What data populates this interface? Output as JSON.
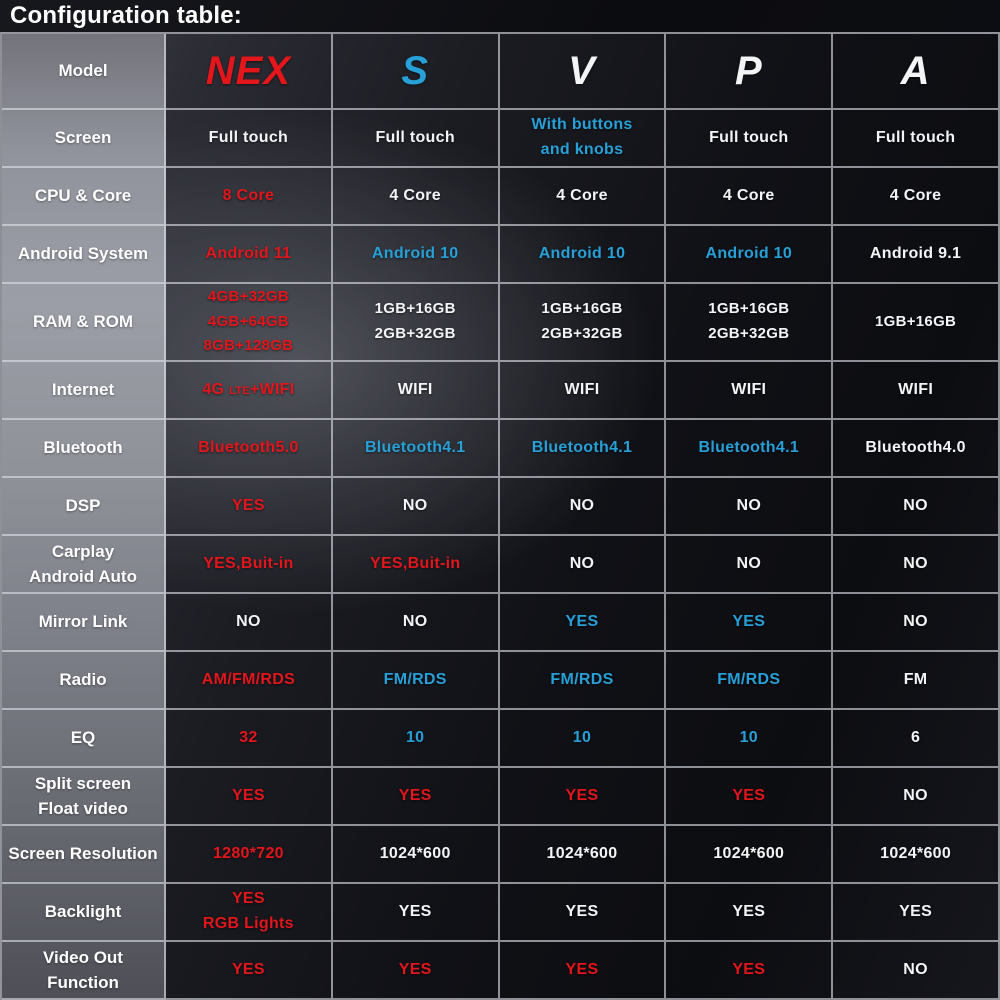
{
  "colors": {
    "red": "#e2161b",
    "blue": "#27a0d8",
    "white": "#f3f4f6",
    "line": "rgba(222,225,232,0.62)"
  },
  "chart_data": {
    "type": "table",
    "title": "Configuration table:",
    "corner_label": "Model",
    "columns": [
      {
        "name": "NEX",
        "color": "red"
      },
      {
        "name": "S",
        "color": "blue"
      },
      {
        "name": "V",
        "color": "white"
      },
      {
        "name": "P",
        "color": "white"
      },
      {
        "name": "A",
        "color": "white"
      }
    ],
    "rows": [
      {
        "label": [
          "Screen"
        ],
        "cells": [
          {
            "lines": [
              "Full touch"
            ],
            "color": "white"
          },
          {
            "lines": [
              "Full touch"
            ],
            "color": "white"
          },
          {
            "lines": [
              "With buttons",
              "and knobs"
            ],
            "color": "blue"
          },
          {
            "lines": [
              "Full touch"
            ],
            "color": "white"
          },
          {
            "lines": [
              "Full touch"
            ],
            "color": "white"
          }
        ]
      },
      {
        "label": [
          "CPU & Core"
        ],
        "cells": [
          {
            "lines": [
              "8 Core"
            ],
            "color": "red"
          },
          {
            "lines": [
              "4 Core"
            ],
            "color": "white"
          },
          {
            "lines": [
              "4 Core"
            ],
            "color": "white"
          },
          {
            "lines": [
              "4 Core"
            ],
            "color": "white"
          },
          {
            "lines": [
              "4 Core"
            ],
            "color": "white"
          }
        ]
      },
      {
        "label": [
          "Android System"
        ],
        "cells": [
          {
            "lines": [
              "Android 11"
            ],
            "color": "red"
          },
          {
            "lines": [
              "Android 10"
            ],
            "color": "blue"
          },
          {
            "lines": [
              "Android 10"
            ],
            "color": "blue"
          },
          {
            "lines": [
              "Android 10"
            ],
            "color": "blue"
          },
          {
            "lines": [
              "Android 9.1"
            ],
            "color": "white"
          }
        ]
      },
      {
        "label": [
          "RAM & ROM"
        ],
        "tall": true,
        "cells": [
          {
            "lines": [
              "4GB+32GB",
              "4GB+64GB",
              "8GB+128GB"
            ],
            "color": "red"
          },
          {
            "lines": [
              "1GB+16GB",
              "2GB+32GB"
            ],
            "color": "white"
          },
          {
            "lines": [
              "1GB+16GB",
              "2GB+32GB"
            ],
            "color": "white"
          },
          {
            "lines": [
              "1GB+16GB",
              "2GB+32GB"
            ],
            "color": "white"
          },
          {
            "lines": [
              "1GB+16GB"
            ],
            "color": "white"
          }
        ]
      },
      {
        "label": [
          "Internet"
        ],
        "cells": [
          {
            "parts": [
              {
                "t": "4G "
              },
              {
                "t": "LTE",
                "small": true
              },
              {
                "t": "+WIFI"
              }
            ],
            "color": "red"
          },
          {
            "lines": [
              "WIFI"
            ],
            "color": "white"
          },
          {
            "lines": [
              "WIFI"
            ],
            "color": "white"
          },
          {
            "lines": [
              "WIFI"
            ],
            "color": "white"
          },
          {
            "lines": [
              "WIFI"
            ],
            "color": "white"
          }
        ]
      },
      {
        "label": [
          "Bluetooth"
        ],
        "cells": [
          {
            "lines": [
              "Bluetooth5.0"
            ],
            "color": "red"
          },
          {
            "lines": [
              "Bluetooth4.1"
            ],
            "color": "blue"
          },
          {
            "lines": [
              "Bluetooth4.1"
            ],
            "color": "blue"
          },
          {
            "lines": [
              "Bluetooth4.1"
            ],
            "color": "blue"
          },
          {
            "lines": [
              "Bluetooth4.0"
            ],
            "color": "white"
          }
        ]
      },
      {
        "label": [
          "DSP"
        ],
        "cells": [
          {
            "lines": [
              "YES"
            ],
            "color": "red"
          },
          {
            "lines": [
              "NO"
            ],
            "color": "white"
          },
          {
            "lines": [
              "NO"
            ],
            "color": "white"
          },
          {
            "lines": [
              "NO"
            ],
            "color": "white"
          },
          {
            "lines": [
              "NO"
            ],
            "color": "white"
          }
        ]
      },
      {
        "label": [
          "Carplay",
          "Android Auto"
        ],
        "cells": [
          {
            "lines": [
              "YES,Buit-in"
            ],
            "color": "red"
          },
          {
            "lines": [
              "YES,Buit-in"
            ],
            "color": "red"
          },
          {
            "lines": [
              "NO"
            ],
            "color": "white"
          },
          {
            "lines": [
              "NO"
            ],
            "color": "white"
          },
          {
            "lines": [
              "NO"
            ],
            "color": "white"
          }
        ]
      },
      {
        "label": [
          "Mirror Link"
        ],
        "cells": [
          {
            "lines": [
              "NO"
            ],
            "color": "white"
          },
          {
            "lines": [
              "NO"
            ],
            "color": "white"
          },
          {
            "lines": [
              "YES"
            ],
            "color": "blue"
          },
          {
            "lines": [
              "YES"
            ],
            "color": "blue"
          },
          {
            "lines": [
              "NO"
            ],
            "color": "white"
          }
        ]
      },
      {
        "label": [
          "Radio"
        ],
        "cells": [
          {
            "lines": [
              "AM/FM/RDS"
            ],
            "color": "red"
          },
          {
            "lines": [
              "FM/RDS"
            ],
            "color": "blue"
          },
          {
            "lines": [
              "FM/RDS"
            ],
            "color": "blue"
          },
          {
            "lines": [
              "FM/RDS"
            ],
            "color": "blue"
          },
          {
            "lines": [
              "FM"
            ],
            "color": "white"
          }
        ]
      },
      {
        "label": [
          "EQ"
        ],
        "cells": [
          {
            "lines": [
              "32"
            ],
            "color": "red"
          },
          {
            "lines": [
              "10"
            ],
            "color": "blue"
          },
          {
            "lines": [
              "10"
            ],
            "color": "blue"
          },
          {
            "lines": [
              "10"
            ],
            "color": "blue"
          },
          {
            "lines": [
              "6"
            ],
            "color": "white"
          }
        ]
      },
      {
        "label": [
          "Split screen",
          "Float video"
        ],
        "cells": [
          {
            "lines": [
              "YES"
            ],
            "color": "red"
          },
          {
            "lines": [
              "YES"
            ],
            "color": "red"
          },
          {
            "lines": [
              "YES"
            ],
            "color": "red"
          },
          {
            "lines": [
              "YES"
            ],
            "color": "red"
          },
          {
            "lines": [
              "NO"
            ],
            "color": "white"
          }
        ]
      },
      {
        "label": [
          "Screen Resolution"
        ],
        "cells": [
          {
            "lines": [
              "1280*720"
            ],
            "color": "red"
          },
          {
            "lines": [
              "1024*600"
            ],
            "color": "white"
          },
          {
            "lines": [
              "1024*600"
            ],
            "color": "white"
          },
          {
            "lines": [
              "1024*600"
            ],
            "color": "white"
          },
          {
            "lines": [
              "1024*600"
            ],
            "color": "white"
          }
        ]
      },
      {
        "label": [
          "Backlight"
        ],
        "cells": [
          {
            "lines": [
              "YES",
              "RGB Lights"
            ],
            "color": "red"
          },
          {
            "lines": [
              "YES"
            ],
            "color": "white"
          },
          {
            "lines": [
              "YES"
            ],
            "color": "white"
          },
          {
            "lines": [
              "YES"
            ],
            "color": "white"
          },
          {
            "lines": [
              "YES"
            ],
            "color": "white"
          }
        ]
      },
      {
        "label": [
          "Video Out",
          "Function"
        ],
        "cells": [
          {
            "lines": [
              "YES"
            ],
            "color": "red"
          },
          {
            "lines": [
              "YES"
            ],
            "color": "red"
          },
          {
            "lines": [
              "YES"
            ],
            "color": "red"
          },
          {
            "lines": [
              "YES"
            ],
            "color": "red"
          },
          {
            "lines": [
              "NO"
            ],
            "color": "white"
          }
        ]
      }
    ]
  }
}
